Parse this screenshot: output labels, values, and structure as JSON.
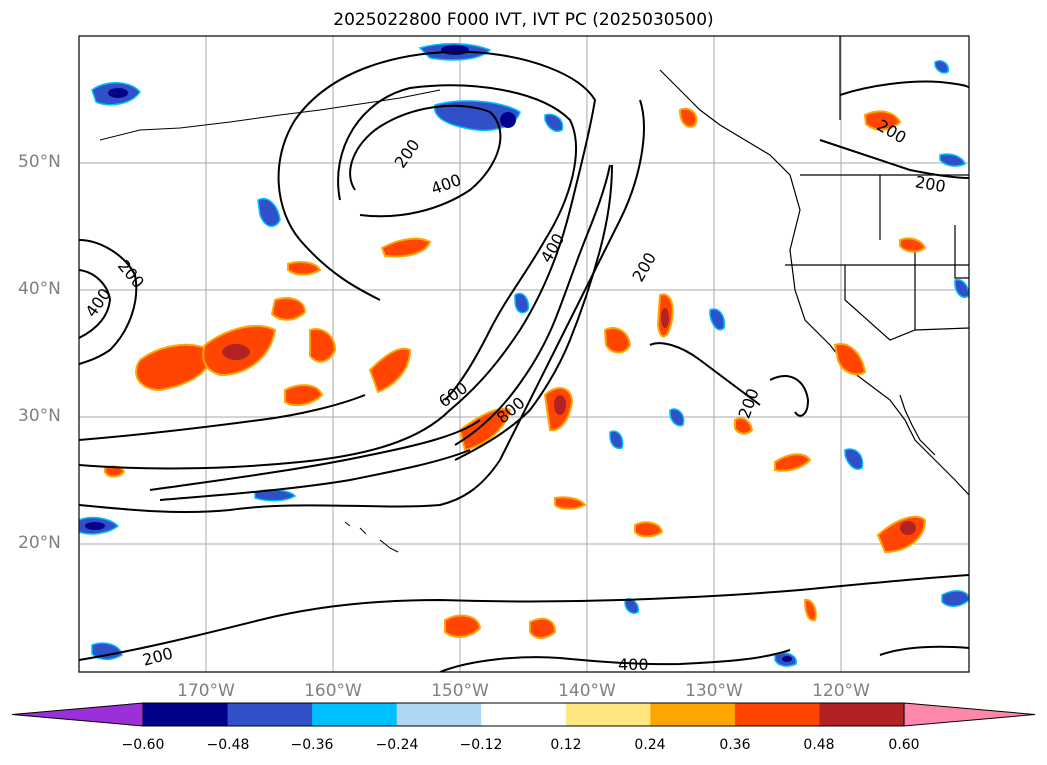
{
  "title": "2025022800 F000 IVT, IVT PC (2025030500)",
  "map": {
    "projection": "lat-lon",
    "lon_range": [
      "180°",
      "110°W"
    ],
    "lat_range": [
      "10°N",
      "60°N"
    ],
    "gridlines": true,
    "lon_labels": [
      "170°W",
      "160°W",
      "150°W",
      "140°W",
      "130°W",
      "120°W"
    ],
    "lat_labels": [
      "50°N",
      "40°N",
      "30°N",
      "20°N"
    ],
    "contour_field": "IVT",
    "contour_labels": [
      "200",
      "400",
      "200",
      "400",
      "400",
      "200",
      "600",
      "800",
      "200",
      "200",
      "200",
      "200",
      "400"
    ],
    "shaded_field": "IVT PC"
  },
  "colorbar": {
    "extend": "both",
    "ticks": [
      "−0.60",
      "−0.48",
      "−0.36",
      "−0.24",
      "−0.12",
      "0.12",
      "0.24",
      "0.36",
      "0.48",
      "0.60"
    ],
    "colors": [
      "#9b30d9",
      "#00008b",
      "#3050c8",
      "#00bfff",
      "#add8f5",
      "#ffffff",
      "#ffe680",
      "#ffa500",
      "#ff4500",
      "#b22222",
      "#ff88aa"
    ]
  }
}
